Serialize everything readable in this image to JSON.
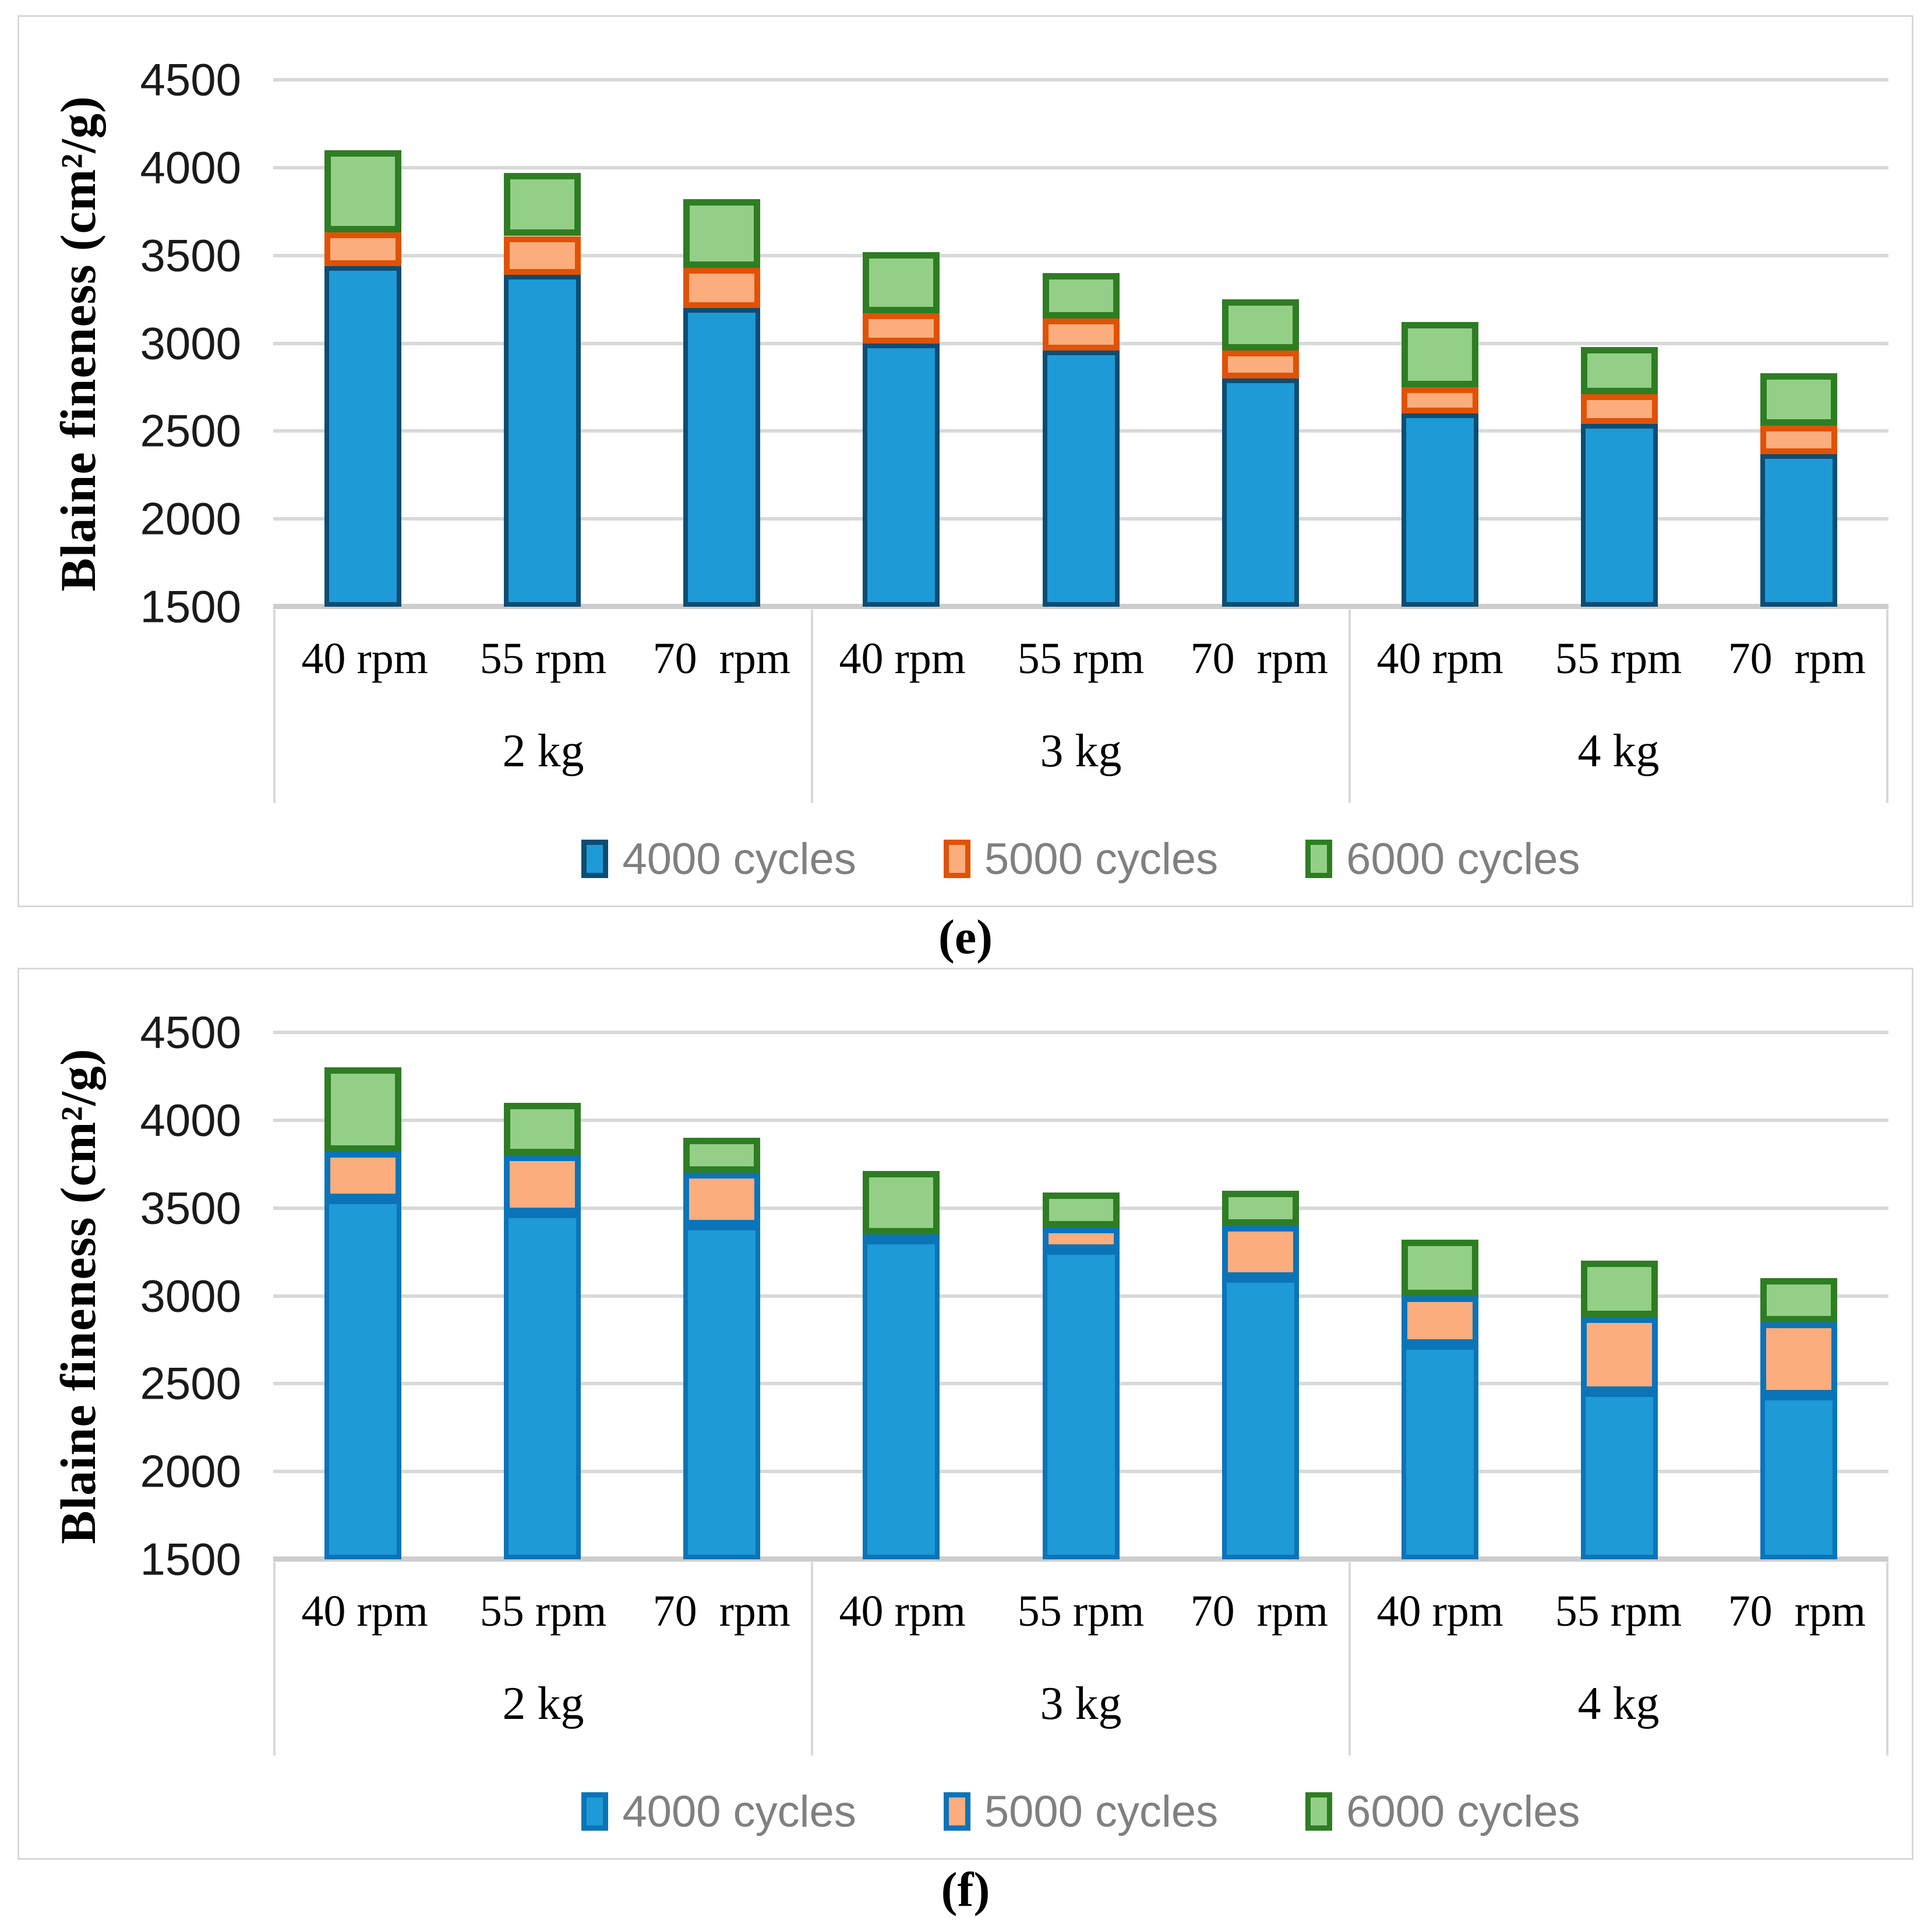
{
  "colors": {
    "background": "#FFFFFF",
    "frame_border": "#D9D9D9",
    "gridline": "#D9D9D9",
    "axis_line": "#CDCDCD",
    "axis_table_border": "#D9D9D9",
    "tick_label_text": "#1A1A1A",
    "category_text": "#000000",
    "legend_text": "#808080",
    "caption_text": "#000000"
  },
  "chart_data": [
    {
      "id": "e",
      "type": "bar",
      "stacked": true,
      "caption": "(e)",
      "ylabel": "Blaine fineness (cm²/g)",
      "ylim": [
        1500,
        4500
      ],
      "yticks": [
        4500,
        4000,
        3500,
        3000,
        2500,
        2000,
        1500
      ],
      "grid": true,
      "legend_position": "bottom",
      "groups": [
        {
          "label": "2 kg",
          "categories": [
            "40 rpm",
            "55 rpm",
            "70  rpm"
          ]
        },
        {
          "label": "3 kg",
          "categories": [
            "40 rpm",
            "55 rpm",
            "70  rpm"
          ]
        },
        {
          "label": "4 kg",
          "categories": [
            "40 rpm",
            "55 rpm",
            "70  rpm"
          ]
        }
      ],
      "values_are_cumulative_stack_tops": true,
      "series": [
        {
          "name": "4000 cycles",
          "fill": "#1E9AD6",
          "border": "#0D4D73",
          "values": [
            3440,
            3390,
            3200,
            3000,
            2960,
            2800,
            2600,
            2540,
            2370
          ]
        },
        {
          "name": "5000 cycles",
          "fill": "#FBAD7D",
          "border": "#E05206",
          "values": [
            3630,
            3610,
            3430,
            3170,
            3140,
            2960,
            2750,
            2710,
            2530
          ]
        },
        {
          "name": "6000 cycles",
          "fill": "#94CF87",
          "border": "#2E7D23",
          "values": [
            4100,
            3970,
            3820,
            3520,
            3400,
            3250,
            3120,
            2980,
            2830
          ]
        }
      ]
    },
    {
      "id": "f",
      "type": "bar",
      "stacked": true,
      "caption": "(f)",
      "ylabel": "Blaine fineness (cm²/g)",
      "ylim": [
        1500,
        4500
      ],
      "yticks": [
        4500,
        4000,
        3500,
        3000,
        2500,
        2000,
        1500
      ],
      "grid": true,
      "legend_position": "bottom",
      "groups": [
        {
          "label": "2 kg",
          "categories": [
            "40 rpm",
            "55 rpm",
            "70  rpm"
          ]
        },
        {
          "label": "3 kg",
          "categories": [
            "40 rpm",
            "55 rpm",
            "70  rpm"
          ]
        },
        {
          "label": "4 kg",
          "categories": [
            "40 rpm",
            "55 rpm",
            "70  rpm"
          ]
        }
      ],
      "values_are_cumulative_stack_tops": true,
      "series": [
        {
          "name": "4000 cycles",
          "fill": "#1E9AD6",
          "border": "#0B74B8",
          "values": [
            3550,
            3470,
            3400,
            3320,
            3260,
            3100,
            2720,
            2450,
            2430
          ]
        },
        {
          "name": "5000 cycles",
          "fill": "#FBAD7D",
          "border": "#0B74B8",
          "values": [
            3820,
            3800,
            3700,
            3350,
            3390,
            3400,
            3000,
            2880,
            2850
          ]
        },
        {
          "name": "6000 cycles",
          "fill": "#94CF87",
          "border": "#2E7D23",
          "values": [
            4300,
            4100,
            3900,
            3710,
            3590,
            3600,
            3320,
            3200,
            3100
          ]
        }
      ]
    }
  ]
}
